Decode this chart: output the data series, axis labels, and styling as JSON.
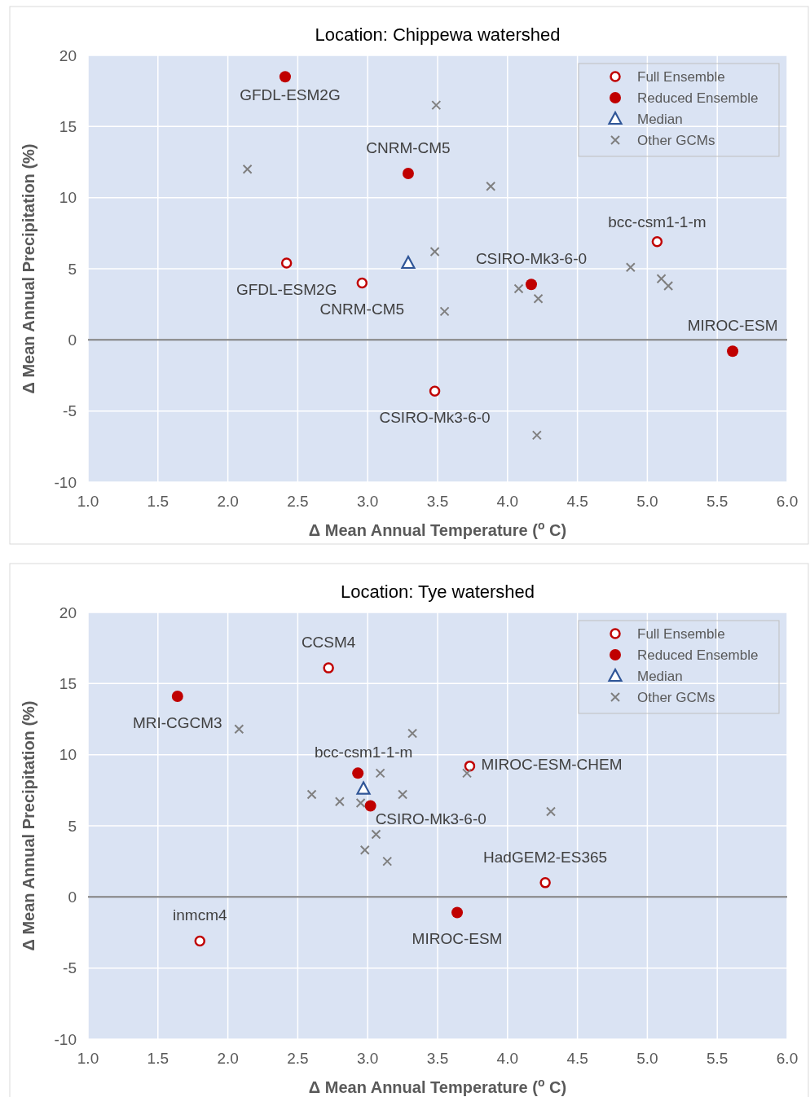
{
  "chart_data": [
    {
      "type": "scatter",
      "title": "Location: Chippewa watershed",
      "xlabel": "Δ Mean Annual Temperature ($^{o}$ C)",
      "ylabel": "Δ Mean Annual Precipitation (%)",
      "xlim": [
        1,
        6
      ],
      "ylim": [
        -10,
        20
      ],
      "xticks": [
        {
          "value": 1,
          "label": "1.0"
        },
        {
          "value": 1.5,
          "label": "1.5"
        },
        {
          "value": 2,
          "label": "2.0"
        },
        {
          "value": 2.5,
          "label": "2.5"
        },
        {
          "value": 3,
          "label": "3.0"
        },
        {
          "value": 3.5,
          "label": "3.5"
        },
        {
          "value": 4,
          "label": "4.0"
        },
        {
          "value": 4.5,
          "label": "4.5"
        },
        {
          "value": 5,
          "label": "5.0"
        },
        {
          "value": 5.5,
          "label": "5.5"
        },
        {
          "value": 6,
          "label": "6.0"
        }
      ],
      "yticks": [
        -10,
        -5,
        0,
        5,
        10,
        15,
        20
      ],
      "grid": true,
      "legend": "top right",
      "ref_lines": [
        {
          "axis": "y",
          "value": 0,
          "color": "#7f7f7f"
        }
      ],
      "series": [
        {
          "name": "Full Ensemble",
          "color": "#c00000",
          "marker": "circle-open",
          "x": [
            2.42,
            2.96,
            5.07,
            3.48
          ],
          "values": [
            5.4,
            4.0,
            6.9,
            -3.6
          ]
        },
        {
          "name": "Reduced Ensemble",
          "color": "#c00000",
          "marker": "circle",
          "x": [
            2.41,
            3.29,
            4.17,
            5.61
          ],
          "values": [
            18.5,
            11.7,
            3.9,
            -0.8
          ]
        },
        {
          "name": "Median",
          "color": "#2f5597",
          "marker": "triangle-open",
          "x": [
            3.29
          ],
          "values": [
            5.4
          ]
        },
        {
          "name": "Other GCMs",
          "color": "#7f7f7f",
          "marker": "cross",
          "x": [
            2.14,
            3.49,
            3.88,
            3.48,
            3.55,
            4.08,
            4.22,
            4.88,
            5.1,
            5.15,
            4.21
          ],
          "values": [
            12.0,
            16.5,
            10.8,
            6.2,
            2.0,
            3.6,
            2.9,
            5.1,
            4.3,
            3.8,
            -6.7
          ]
        }
      ],
      "annotations": [
        {
          "text": "GFDL-ESM2G",
          "x": 2.41,
          "y": 18.5
        },
        {
          "text": "CNRM-CM5",
          "x": 3.29,
          "y": 11.7
        },
        {
          "text": "bcc-csm1-1-m",
          "x": 5.07,
          "y": 6.9
        },
        {
          "text": "CSIRO-Mk3-6-0",
          "x": 4.17,
          "y": 3.9
        },
        {
          "text": "MIROC-ESM",
          "x": 5.61,
          "y": -0.8
        },
        {
          "text": "GFDL-ESM2G",
          "x": 2.42,
          "y": 5.4
        },
        {
          "text": "CNRM-CM5",
          "x": 2.96,
          "y": 4.0
        },
        {
          "text": "CSIRO-Mk3-6-0",
          "x": 3.48,
          "y": -3.6
        }
      ]
    },
    {
      "type": "scatter",
      "title": "Location: Tye watershed",
      "xlabel": "Δ Mean Annual Temperature ($^{o}$ C)",
      "ylabel": "Δ Mean Annual Precipitation (%)",
      "xlim": [
        1,
        6
      ],
      "ylim": [
        -10,
        20
      ],
      "xticks": [
        {
          "value": 1,
          "label": "1.0"
        },
        {
          "value": 1.5,
          "label": "1.5"
        },
        {
          "value": 2,
          "label": "2.0"
        },
        {
          "value": 2.5,
          "label": "2.5"
        },
        {
          "value": 3,
          "label": "3.0"
        },
        {
          "value": 3.5,
          "label": "3.5"
        },
        {
          "value": 4,
          "label": "4.0"
        },
        {
          "value": 4.5,
          "label": "4.5"
        },
        {
          "value": 5,
          "label": "5.0"
        },
        {
          "value": 5.5,
          "label": "5.5"
        },
        {
          "value": 6,
          "label": "6.0"
        }
      ],
      "yticks": [
        -10,
        -5,
        0,
        5,
        10,
        15,
        20
      ],
      "grid": true,
      "legend": "top right",
      "ref_lines": [
        {
          "axis": "y",
          "value": 0,
          "color": "#7f7f7f"
        }
      ],
      "series": [
        {
          "name": "Full Ensemble",
          "color": "#c00000",
          "marker": "circle-open",
          "x": [
            2.72,
            3.73,
            4.27,
            1.8
          ],
          "values": [
            16.1,
            9.2,
            1.0,
            -3.1
          ]
        },
        {
          "name": "Reduced Ensemble",
          "color": "#c00000",
          "marker": "circle",
          "x": [
            1.64,
            2.93,
            3.02,
            3.64
          ],
          "values": [
            14.1,
            8.7,
            6.4,
            -1.1
          ]
        },
        {
          "name": "Median",
          "color": "#2f5597",
          "marker": "triangle-open",
          "x": [
            2.97
          ],
          "values": [
            7.6
          ]
        },
        {
          "name": "Other GCMs",
          "color": "#7f7f7f",
          "marker": "cross",
          "x": [
            2.08,
            3.32,
            3.09,
            2.6,
            2.8,
            2.95,
            3.25,
            3.71,
            4.31,
            3.06,
            2.98,
            3.14
          ],
          "values": [
            11.8,
            11.5,
            8.7,
            7.2,
            6.7,
            6.6,
            7.2,
            8.7,
            6.0,
            4.4,
            3.3,
            2.5
          ]
        }
      ],
      "annotations": [
        {
          "text": "CCSM4",
          "x": 2.72,
          "y": 16.1
        },
        {
          "text": "MRI-CGCM3",
          "x": 1.64,
          "y": 14.1
        },
        {
          "text": "bcc-csm1-1-m",
          "x": 2.93,
          "y": 8.7
        },
        {
          "text": "CSIRO-Mk3-6-0",
          "x": 3.02,
          "y": 6.4
        },
        {
          "text": "MIROC-ESM-CHEM",
          "x": 3.73,
          "y": 9.2
        },
        {
          "text": "HadGEM2-ES365",
          "x": 4.27,
          "y": 1.0
        },
        {
          "text": "MIROC-ESM",
          "x": 3.64,
          "y": -1.1
        },
        {
          "text": "inmcm4",
          "x": 1.8,
          "y": -3.1
        }
      ]
    }
  ]
}
